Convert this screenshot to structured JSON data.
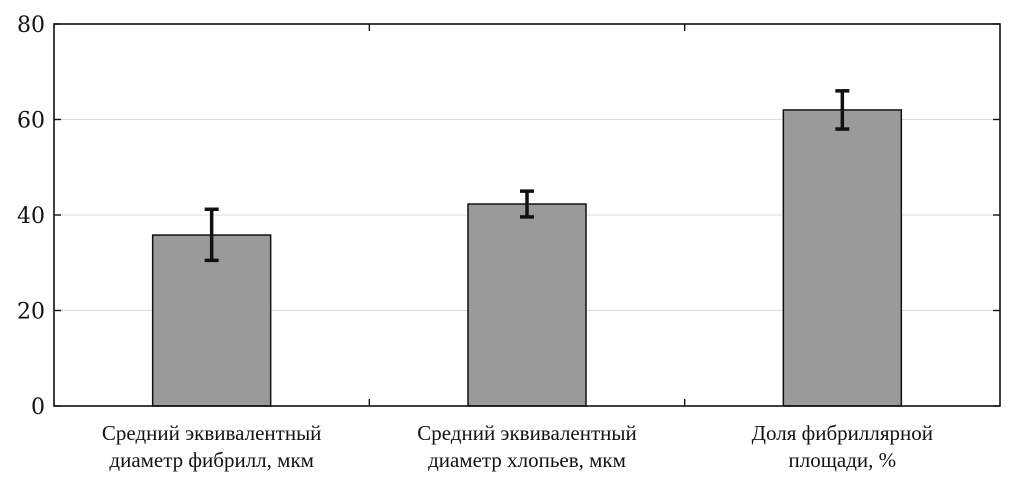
{
  "chart_data": {
    "type": "bar",
    "title": "",
    "xlabel": "",
    "ylabel": "",
    "ylim": [
      0,
      80
    ],
    "yticks": [
      0,
      20,
      40,
      60,
      80
    ],
    "grid": "horizontal",
    "bar_color": "#9a9a9a",
    "categories": [
      [
        "Средний эквивалентный",
        "диаметр фибрилл, мкм"
      ],
      [
        "Средний эквивалентный",
        "диаметр хлопьев, мкм"
      ],
      [
        "Доля фибриллярной",
        "площади, %"
      ]
    ],
    "values": [
      35.8,
      42.3,
      62.0
    ],
    "errors": [
      [
        30.5,
        41.2
      ],
      [
        39.6,
        45.0
      ],
      [
        58.0,
        66.0
      ]
    ]
  }
}
